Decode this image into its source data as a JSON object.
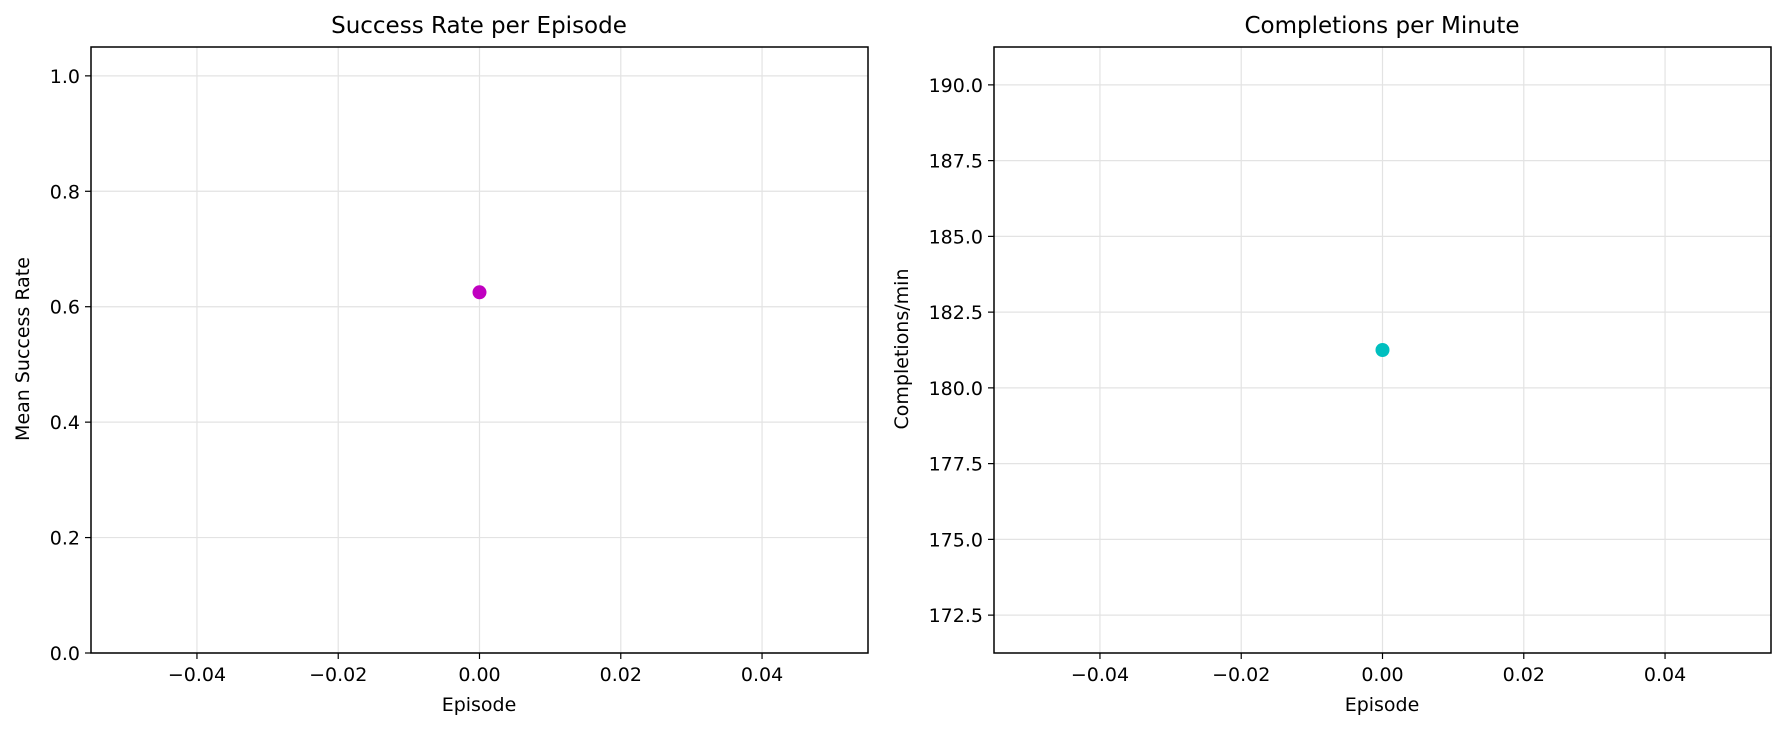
{
  "chart_data": [
    {
      "type": "scatter",
      "title": "Success Rate per Episode",
      "xlabel": "Episode",
      "ylabel": "Mean Success Rate",
      "xlim": [
        -0.055,
        0.055
      ],
      "ylim": [
        0.0,
        1.05
      ],
      "xticks": [
        -0.04,
        -0.02,
        0.0,
        0.02,
        0.04
      ],
      "xtick_labels": [
        "−0.04",
        "−0.02",
        "0.00",
        "0.02",
        "0.04"
      ],
      "yticks": [
        0.0,
        0.2,
        0.4,
        0.6,
        0.8,
        1.0
      ],
      "ytick_labels": [
        "0.0",
        "0.2",
        "0.4",
        "0.6",
        "0.8",
        "1.0"
      ],
      "grid": true,
      "series": [
        {
          "x": [
            0.0
          ],
          "y": [
            0.625
          ],
          "color": "#c000c0"
        }
      ]
    },
    {
      "type": "scatter",
      "title": "Completions per Minute",
      "xlabel": "Episode",
      "ylabel": "Completions/min",
      "xlim": [
        -0.055,
        0.055
      ],
      "ylim": [
        171.25,
        191.25
      ],
      "xticks": [
        -0.04,
        -0.02,
        0.0,
        0.02,
        0.04
      ],
      "xtick_labels": [
        "−0.04",
        "−0.02",
        "0.00",
        "0.02",
        "0.04"
      ],
      "yticks": [
        172.5,
        175.0,
        177.5,
        180.0,
        182.5,
        185.0,
        187.5,
        190.0
      ],
      "ytick_labels": [
        "172.5",
        "175.0",
        "177.5",
        "180.0",
        "182.5",
        "185.0",
        "187.5",
        "190.0"
      ],
      "grid": true,
      "series": [
        {
          "x": [
            0.0
          ],
          "y": [
            181.25
          ],
          "color": "#00bfbf"
        }
      ]
    }
  ]
}
